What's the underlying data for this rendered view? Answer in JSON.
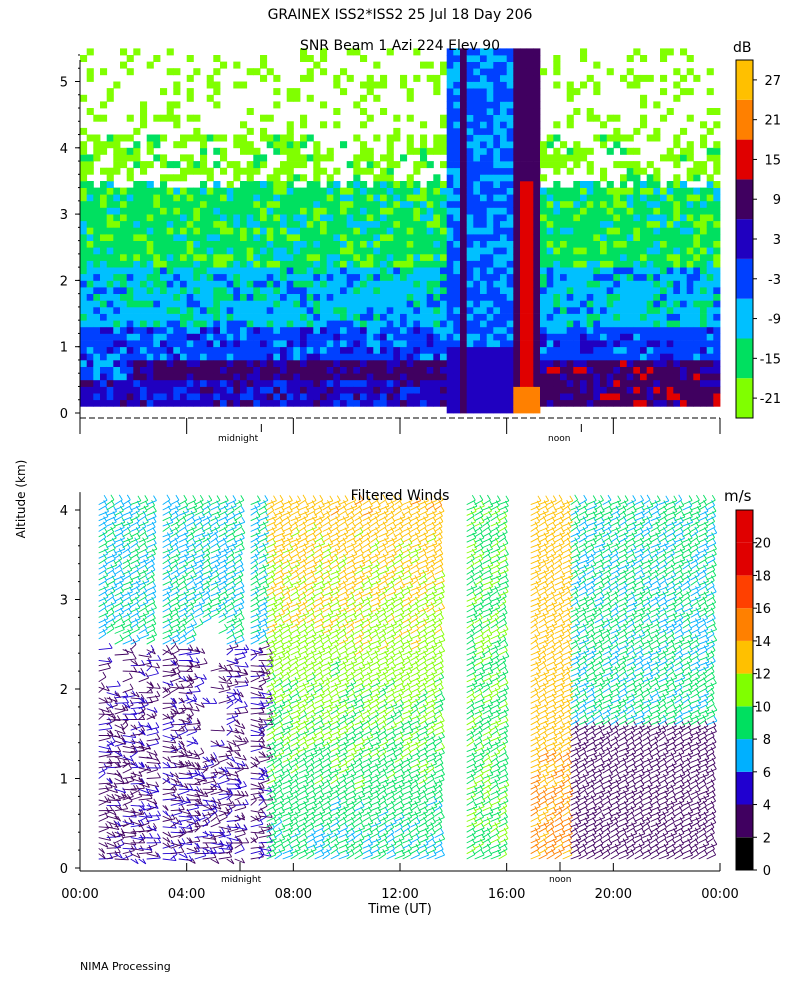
{
  "header": {
    "title": "GRAINEX ISS2*ISS2  25 Jul 18 Day 206",
    "y_axis_label": "Altitude (km)",
    "footer": "NIMA Processing"
  },
  "colors": {
    "snr_scale": [
      "#80ff00",
      "#00e060",
      "#00c0ff",
      "#0040ff",
      "#2000c0",
      "#400060",
      "#e00000",
      "#ff8000",
      "#ffc000"
    ],
    "wind_scale": [
      "#000000",
      "#400060",
      "#2000d0",
      "#00b0ff",
      "#00e060",
      "#80ff00",
      "#ffc000",
      "#ff8000",
      "#ff4000",
      "#e00000"
    ]
  },
  "chart_data": [
    {
      "type": "heatmap",
      "title": "SNR Beam 1 Azi 224 Elev 90",
      "ylabel": "Altitude (km)",
      "y_ticks": [
        0,
        1,
        2,
        3,
        4,
        5
      ],
      "ylim": [
        0,
        5.5
      ],
      "x_markers": [
        {
          "label": "midnight",
          "hour": 6.8
        },
        {
          "label": "noon",
          "hour": 18.8
        }
      ],
      "colorbar": {
        "unit": "dB",
        "ticks": [
          -21,
          -15,
          -9,
          -3,
          3,
          9,
          15,
          21,
          27
        ],
        "range": [
          -24,
          30
        ]
      },
      "grid": false
    },
    {
      "type": "heatmap",
      "title": "Filtered Winds",
      "xlabel": "Time (UT)",
      "x_ticks": [
        "00:00",
        "04:00",
        "08:00",
        "12:00",
        "16:00",
        "20:00",
        "00:00"
      ],
      "xlim": [
        0,
        24
      ],
      "ylim": [
        0,
        4.2
      ],
      "y_ticks": [
        0,
        1,
        2,
        3,
        4
      ],
      "x_markers": [
        {
          "label": "midnight",
          "hour": 6.0
        },
        {
          "label": "noon",
          "hour": 18.0
        }
      ],
      "colorbar": {
        "unit": "m/s",
        "ticks": [
          0,
          2,
          4,
          6,
          8,
          10,
          12,
          14,
          16,
          18,
          20
        ],
        "range": [
          0,
          22
        ]
      },
      "grid": false
    }
  ]
}
